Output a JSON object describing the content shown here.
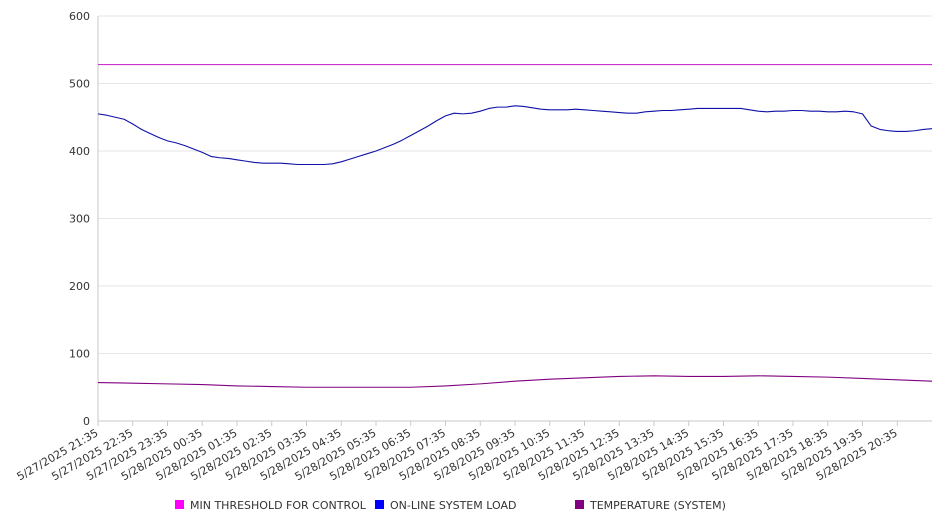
{
  "chart_data": {
    "type": "line",
    "title": "",
    "xlabel": "",
    "ylabel": "",
    "ylim": [
      0,
      600
    ],
    "yticks": [
      0,
      100,
      200,
      300,
      400,
      500,
      600
    ],
    "grid": true,
    "legend_position": "bottom",
    "x_tick_labels": [
      "5/27/2025 21:35",
      "5/27/2025 22:35",
      "5/27/2025 23:35",
      "5/28/2025 00:35",
      "5/28/2025 01:35",
      "5/28/2025 02:35",
      "5/28/2025 03:35",
      "5/28/2025 04:35",
      "5/28/2025 05:35",
      "5/28/2025 06:35",
      "5/28/2025 07:35",
      "5/28/2025 08:35",
      "5/28/2025 09:35",
      "5/28/2025 10:35",
      "5/28/2025 11:35",
      "5/28/2025 12:35",
      "5/28/2025 13:35",
      "5/28/2025 14:35",
      "5/28/2025 15:35",
      "5/28/2025 16:35",
      "5/28/2025 17:35",
      "5/28/2025 18:35",
      "5/28/2025 19:35",
      "5/28/2025 20:35"
    ],
    "series": [
      {
        "name": "MIN THRESHOLD FOR CONTROL",
        "color": "#cc33cc",
        "legend_color": "#ff00ff",
        "points": [
          [
            0,
            528
          ],
          [
            24,
            528
          ]
        ]
      },
      {
        "name": "ON-LINE SYSTEM LOAD",
        "color": "#1010a8",
        "legend_color": "#0000ff",
        "points": [
          [
            0,
            455
          ],
          [
            0.25,
            453
          ],
          [
            0.5,
            450
          ],
          [
            0.75,
            447
          ],
          [
            1,
            440
          ],
          [
            1.25,
            432
          ],
          [
            1.5,
            426
          ],
          [
            1.75,
            420
          ],
          [
            2,
            415
          ],
          [
            2.25,
            412
          ],
          [
            2.5,
            408
          ],
          [
            2.75,
            403
          ],
          [
            3,
            398
          ],
          [
            3.25,
            392
          ],
          [
            3.5,
            390
          ],
          [
            3.75,
            389
          ],
          [
            4,
            387
          ],
          [
            4.25,
            385
          ],
          [
            4.5,
            383
          ],
          [
            4.75,
            382
          ],
          [
            5,
            382
          ],
          [
            5.25,
            382
          ],
          [
            5.5,
            381
          ],
          [
            5.75,
            380
          ],
          [
            6,
            380
          ],
          [
            6.25,
            380
          ],
          [
            6.5,
            380
          ],
          [
            6.75,
            381
          ],
          [
            7,
            384
          ],
          [
            7.25,
            388
          ],
          [
            7.5,
            392
          ],
          [
            7.75,
            396
          ],
          [
            8,
            400
          ],
          [
            8.25,
            405
          ],
          [
            8.5,
            410
          ],
          [
            8.75,
            416
          ],
          [
            9,
            423
          ],
          [
            9.25,
            430
          ],
          [
            9.5,
            437
          ],
          [
            9.75,
            445
          ],
          [
            10,
            452
          ],
          [
            10.25,
            456
          ],
          [
            10.5,
            455
          ],
          [
            10.75,
            456
          ],
          [
            11,
            459
          ],
          [
            11.25,
            463
          ],
          [
            11.5,
            465
          ],
          [
            11.75,
            465
          ],
          [
            12,
            467
          ],
          [
            12.25,
            466
          ],
          [
            12.5,
            464
          ],
          [
            12.75,
            462
          ],
          [
            13,
            461
          ],
          [
            13.25,
            461
          ],
          [
            13.5,
            461
          ],
          [
            13.75,
            462
          ],
          [
            14,
            461
          ],
          [
            14.25,
            460
          ],
          [
            14.5,
            459
          ],
          [
            14.75,
            458
          ],
          [
            15,
            457
          ],
          [
            15.25,
            456
          ],
          [
            15.5,
            456
          ],
          [
            15.75,
            458
          ],
          [
            16,
            459
          ],
          [
            16.25,
            460
          ],
          [
            16.5,
            460
          ],
          [
            16.75,
            461
          ],
          [
            17,
            462
          ],
          [
            17.25,
            463
          ],
          [
            17.5,
            463
          ],
          [
            17.75,
            463
          ],
          [
            18,
            463
          ],
          [
            18.25,
            463
          ],
          [
            18.5,
            463
          ],
          [
            18.75,
            461
          ],
          [
            19,
            459
          ],
          [
            19.25,
            458
          ],
          [
            19.5,
            459
          ],
          [
            19.75,
            459
          ],
          [
            20,
            460
          ],
          [
            20.25,
            460
          ],
          [
            20.5,
            459
          ],
          [
            20.75,
            459
          ],
          [
            21,
            458
          ],
          [
            21.25,
            458
          ],
          [
            21.5,
            459
          ],
          [
            21.75,
            458
          ],
          [
            22,
            455
          ],
          [
            22.25,
            437
          ],
          [
            22.5,
            432
          ],
          [
            22.75,
            430
          ],
          [
            23,
            429
          ],
          [
            23.25,
            429
          ],
          [
            23.5,
            430
          ],
          [
            23.75,
            432
          ],
          [
            24,
            433
          ]
        ]
      },
      {
        "name": "TEMPERATURE (SYSTEM)",
        "color": "#800080",
        "legend_color": "#800080",
        "points": [
          [
            0,
            57
          ],
          [
            1,
            56
          ],
          [
            2,
            55
          ],
          [
            3,
            54
          ],
          [
            4,
            52
          ],
          [
            5,
            51
          ],
          [
            6,
            50
          ],
          [
            7,
            50
          ],
          [
            8,
            50
          ],
          [
            9,
            50
          ],
          [
            10,
            52
          ],
          [
            11,
            55
          ],
          [
            12,
            59
          ],
          [
            13,
            62
          ],
          [
            14,
            64
          ],
          [
            15,
            66
          ],
          [
            16,
            67
          ],
          [
            17,
            66
          ],
          [
            18,
            66
          ],
          [
            19,
            67
          ],
          [
            20,
            66
          ],
          [
            21,
            65
          ],
          [
            22,
            63
          ],
          [
            23,
            61
          ],
          [
            24,
            59
          ]
        ]
      }
    ]
  }
}
